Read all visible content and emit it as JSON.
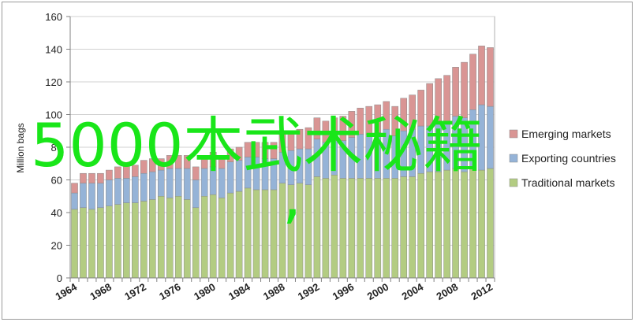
{
  "chart_data": {
    "type": "bar",
    "stacked": true,
    "ylabel": "Million bags",
    "xlabel": "",
    "ylim": [
      0,
      160
    ],
    "yticks": [
      0,
      20,
      40,
      60,
      80,
      100,
      120,
      140,
      160
    ],
    "xtick_labels": [
      "1964",
      "1968",
      "1972",
      "1976",
      "1980",
      "1984",
      "1988",
      "1992",
      "1996",
      "2000",
      "2004",
      "2008",
      "2012"
    ],
    "grid": true,
    "legend_position": "right",
    "x": [
      1964,
      1965,
      1966,
      1967,
      1968,
      1969,
      1970,
      1971,
      1972,
      1973,
      1974,
      1975,
      1976,
      1977,
      1978,
      1979,
      1980,
      1981,
      1982,
      1983,
      1984,
      1985,
      1986,
      1987,
      1988,
      1989,
      1990,
      1991,
      1992,
      1993,
      1994,
      1995,
      1996,
      1997,
      1998,
      1999,
      2000,
      2001,
      2002,
      2003,
      2004,
      2005,
      2006,
      2007,
      2008,
      2009,
      2010,
      2011,
      2012
    ],
    "series": [
      {
        "name": "Traditional markets",
        "color": "#b3cc82",
        "values": [
          42,
          43,
          42,
          43,
          44,
          45,
          46,
          46,
          47,
          48,
          50,
          49,
          50,
          48,
          43,
          50,
          51,
          49,
          52,
          53,
          55,
          54,
          54,
          54,
          58,
          57,
          58,
          57,
          62,
          61,
          63,
          61,
          61,
          61,
          61,
          61,
          61,
          61,
          62,
          62,
          64,
          65,
          65,
          66,
          67,
          65,
          67,
          66,
          67
        ]
      },
      {
        "name": "Exporting countries",
        "color": "#95b3d7",
        "values": [
          10,
          15,
          16,
          15,
          16,
          16,
          15,
          16,
          17,
          17,
          16,
          18,
          17,
          19,
          17,
          17,
          17,
          18,
          19,
          19,
          19,
          20,
          19,
          19,
          19,
          21,
          21,
          22,
          23,
          22,
          21,
          23,
          25,
          27,
          27,
          28,
          30,
          26,
          28,
          29,
          29,
          28,
          30,
          30,
          32,
          33,
          36,
          40,
          38
        ]
      },
      {
        "name": "Emerging markets",
        "color": "#d99594",
        "values": [
          6,
          6,
          6,
          6,
          6,
          7,
          8,
          7,
          8,
          8,
          7,
          8,
          8,
          8,
          8,
          7,
          9,
          8,
          8,
          8,
          9,
          9,
          10,
          10,
          11,
          11,
          12,
          13,
          13,
          13,
          14,
          15,
          16,
          16,
          17,
          17,
          17,
          18,
          20,
          21,
          22,
          26,
          27,
          28,
          30,
          34,
          34,
          36,
          36
        ]
      }
    ]
  },
  "overlay": {
    "line1": "5000本武术秘籍",
    "line2": ","
  }
}
